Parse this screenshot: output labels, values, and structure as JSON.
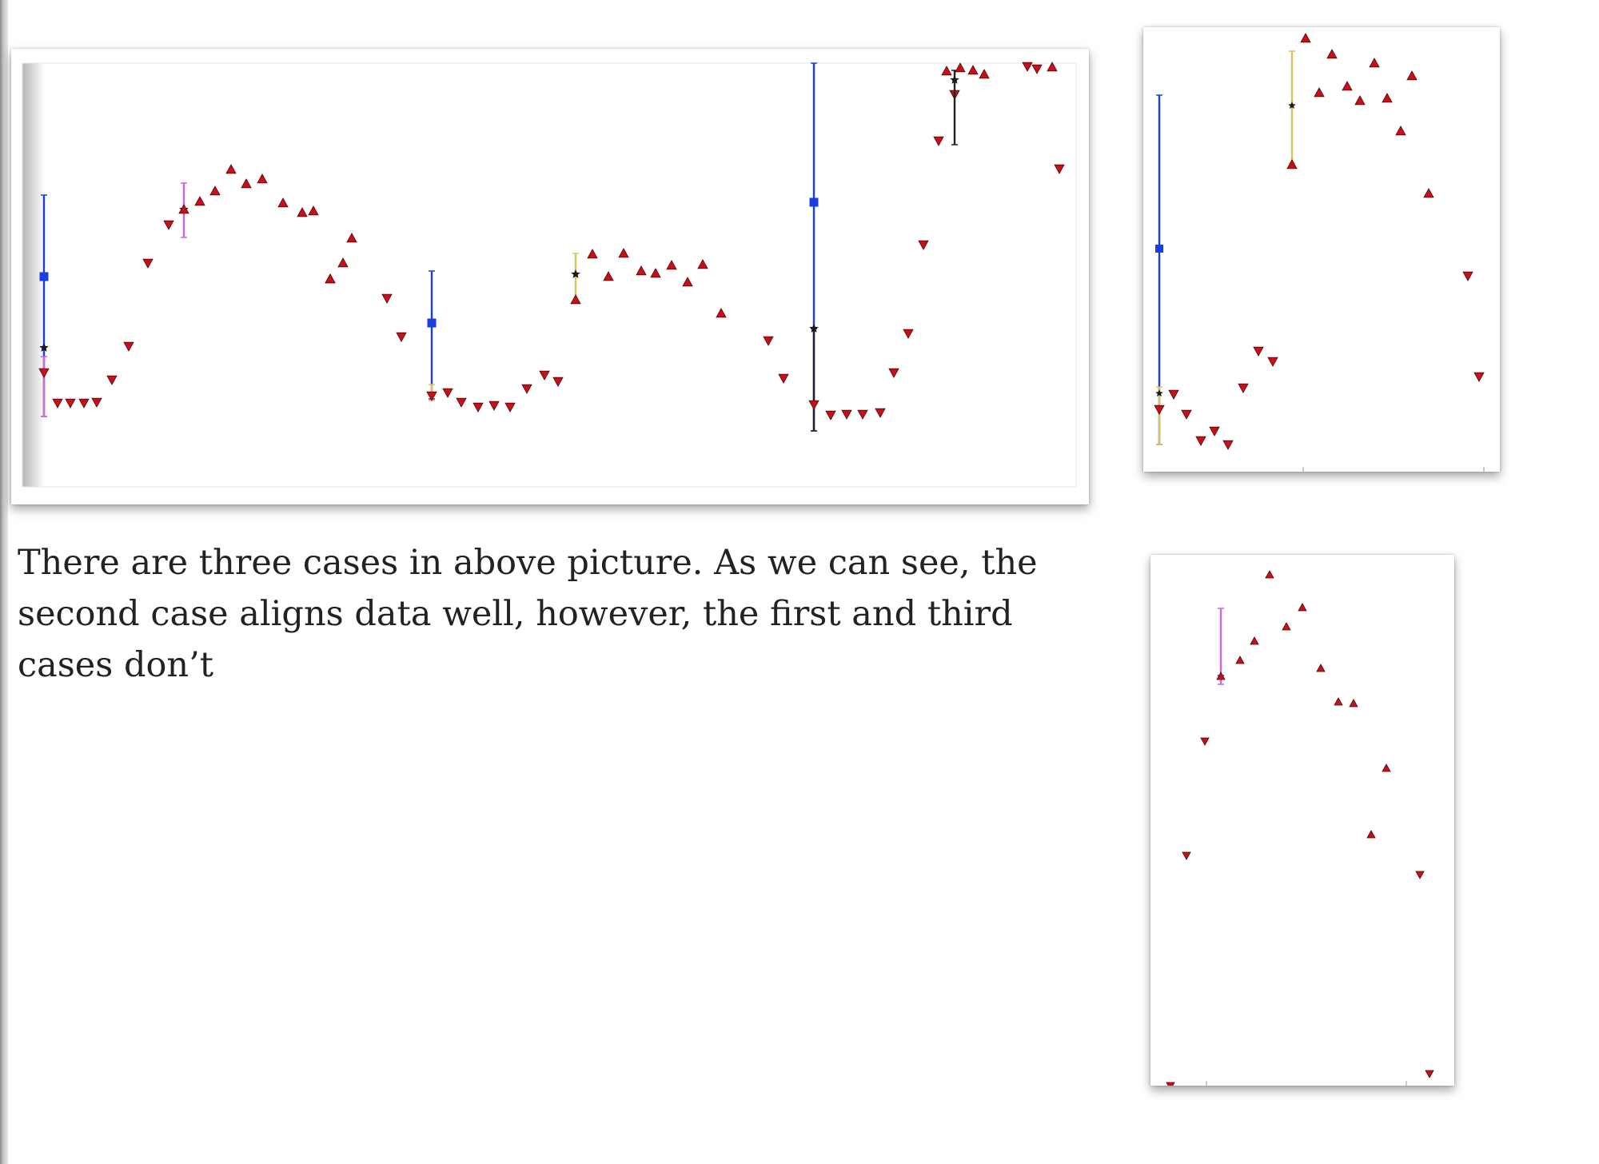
{
  "caption": "There are three cases in above picture. As we can see, the second case aligns data well, however, the first and third cases don’t",
  "colors": {
    "series_line": "#e8101a",
    "marker": "#c8101a",
    "marker_outline": "#5a0000",
    "bar_blue": "#1a3fe0",
    "bar_violet": "#cc66dd",
    "bar_yellow": "#d9c25a",
    "bar_black": "#222222",
    "star": "#1a1a1a"
  },
  "icons": {
    "marker_down": "triangle-down-icon",
    "marker_up": "triangle-up-icon",
    "anchor": "star-icon",
    "mean": "square-icon"
  }
}
